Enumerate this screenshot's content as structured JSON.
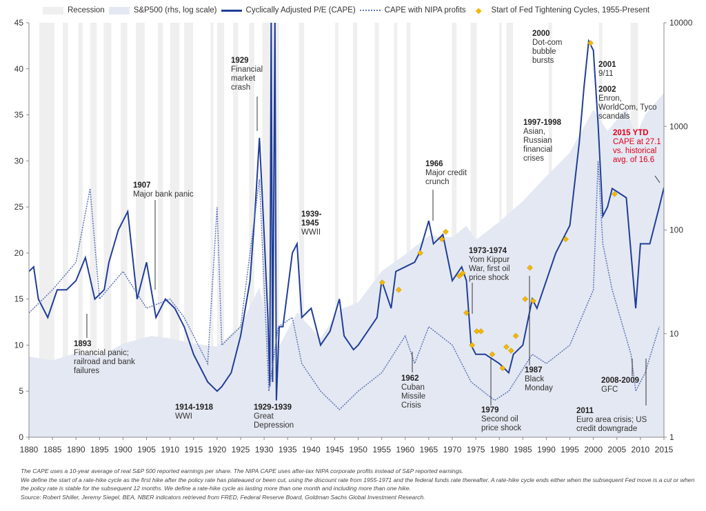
{
  "legend": {
    "recession": "Recession",
    "sp500": "S&P500 (rhs, log scale)",
    "cape": "Cyclically Adjusted P/E (CAPE)",
    "nipa": "CAPE with NIPA profits",
    "fed": "Start of Fed Tightening Cycles, 1955-Present"
  },
  "colors": {
    "cape": "#1f3d99",
    "nipa": "#5b74b8",
    "sp500": "#e4e8f2",
    "recession": "#efefef",
    "fed": "#f5b800",
    "highlight": "#e0001b"
  },
  "chart_data": {
    "type": "line",
    "xlim": [
      1880,
      2015
    ],
    "ylim": [
      0,
      45
    ],
    "y2lim": [
      1,
      10000
    ],
    "y2scale": "log",
    "x_ticks": [
      1880,
      1885,
      1890,
      1895,
      1900,
      1905,
      1910,
      1915,
      1920,
      1925,
      1930,
      1935,
      1940,
      1945,
      1950,
      1955,
      1960,
      1965,
      1970,
      1975,
      1980,
      1985,
      1990,
      1995,
      2000,
      2005,
      2010,
      2015
    ],
    "y_ticks": [
      0,
      5,
      10,
      15,
      20,
      25,
      30,
      35,
      40,
      45
    ],
    "y2_ticks": [
      1,
      10,
      100,
      1000,
      10000
    ],
    "recessions": [
      [
        1882.2,
        1885.4
      ],
      [
        1887.2,
        1888.3
      ],
      [
        1890.5,
        1891.4
      ],
      [
        1893.0,
        1894.4
      ],
      [
        1895.9,
        1897.5
      ],
      [
        1899.5,
        1900.9
      ],
      [
        1902.7,
        1904.6
      ],
      [
        1907.4,
        1908.5
      ],
      [
        1910.0,
        1912.0
      ],
      [
        1913.0,
        1914.9
      ],
      [
        1918.6,
        1919.2
      ],
      [
        1920.0,
        1921.5
      ],
      [
        1923.4,
        1924.5
      ],
      [
        1926.8,
        1927.9
      ],
      [
        1929.6,
        1933.2
      ],
      [
        1937.4,
        1938.5
      ],
      [
        1945.1,
        1945.8
      ],
      [
        1948.9,
        1949.8
      ],
      [
        1953.5,
        1954.4
      ],
      [
        1957.6,
        1958.3
      ],
      [
        1960.3,
        1961.1
      ],
      [
        1969.9,
        1970.9
      ],
      [
        1973.9,
        1975.2
      ],
      [
        1980.0,
        1980.5
      ],
      [
        1981.5,
        1982.9
      ],
      [
        1990.5,
        1991.2
      ],
      [
        2001.2,
        2001.9
      ],
      [
        2007.9,
        2009.5
      ]
    ],
    "sp500": [
      [
        1880,
        6
      ],
      [
        1885,
        5.5
      ],
      [
        1890,
        6.5
      ],
      [
        1895,
        6
      ],
      [
        1900,
        8
      ],
      [
        1906,
        9.5
      ],
      [
        1910,
        9
      ],
      [
        1915,
        8
      ],
      [
        1920,
        7.5
      ],
      [
        1925,
        12
      ],
      [
        1929,
        28
      ],
      [
        1932,
        6
      ],
      [
        1937,
        16
      ],
      [
        1942,
        9
      ],
      [
        1946,
        17
      ],
      [
        1950,
        20
      ],
      [
        1955,
        40
      ],
      [
        1960,
        58
      ],
      [
        1965,
        88
      ],
      [
        1970,
        85
      ],
      [
        1973,
        110
      ],
      [
        1975,
        80
      ],
      [
        1980,
        120
      ],
      [
        1985,
        190
      ],
      [
        1990,
        330
      ],
      [
        1995,
        560
      ],
      [
        2000,
        1450
      ],
      [
        2003,
        900
      ],
      [
        2007,
        1500
      ],
      [
        2009,
        800
      ],
      [
        2011,
        1300
      ],
      [
        2015,
        2100
      ]
    ],
    "series": [
      {
        "name": "Cyclically Adjusted P/E (CAPE)",
        "points": [
          [
            1880,
            18
          ],
          [
            1881,
            18.5
          ],
          [
            1882,
            15
          ],
          [
            1884,
            13
          ],
          [
            1886,
            16
          ],
          [
            1888,
            16
          ],
          [
            1890,
            17
          ],
          [
            1892,
            19.5
          ],
          [
            1894,
            15
          ],
          [
            1896,
            16
          ],
          [
            1897,
            19
          ],
          [
            1899,
            22.5
          ],
          [
            1901,
            24.5
          ],
          [
            1903,
            15
          ],
          [
            1905,
            19
          ],
          [
            1907,
            13
          ],
          [
            1909,
            15
          ],
          [
            1911,
            14
          ],
          [
            1913,
            12
          ],
          [
            1915,
            9
          ],
          [
            1917,
            7
          ],
          [
            1918,
            6
          ],
          [
            1920,
            5
          ],
          [
            1921,
            5.5
          ],
          [
            1923,
            7
          ],
          [
            1925,
            11
          ],
          [
            1927,
            17
          ],
          [
            1928,
            24
          ],
          [
            1929,
            32.5
          ],
          [
            1930,
            22
          ],
          [
            1930.8,
            13
          ],
          [
            1931.2,
            5.5
          ],
          [
            1931.5,
            46
          ],
          [
            1931.8,
            6
          ],
          [
            1932.3,
            46
          ],
          [
            1932.6,
            4
          ],
          [
            1933.2,
            12
          ],
          [
            1934,
            12
          ],
          [
            1936,
            20
          ],
          [
            1937,
            21
          ],
          [
            1938,
            13
          ],
          [
            1940,
            14
          ],
          [
            1942,
            10
          ],
          [
            1944,
            11.5
          ],
          [
            1946,
            15
          ],
          [
            1947,
            11
          ],
          [
            1949,
            9.5
          ],
          [
            1950,
            10
          ],
          [
            1952,
            11.5
          ],
          [
            1954,
            13
          ],
          [
            1955,
            17
          ],
          [
            1957,
            14
          ],
          [
            1958,
            18
          ],
          [
            1960,
            18.5
          ],
          [
            1962,
            19
          ],
          [
            1963,
            20
          ],
          [
            1965,
            23.5
          ],
          [
            1966,
            21
          ],
          [
            1967,
            21.5
          ],
          [
            1968,
            22
          ],
          [
            1970,
            17
          ],
          [
            1972,
            18.5
          ],
          [
            1973,
            17
          ],
          [
            1974,
            10
          ],
          [
            1975,
            9
          ],
          [
            1977,
            9
          ],
          [
            1980,
            8
          ],
          [
            1982,
            7
          ],
          [
            1983,
            9
          ],
          [
            1985,
            10
          ],
          [
            1987,
            15
          ],
          [
            1988,
            14
          ],
          [
            1990,
            17
          ],
          [
            1992,
            20
          ],
          [
            1995,
            23
          ],
          [
            1997,
            32
          ],
          [
            1998,
            38
          ],
          [
            1999,
            43
          ],
          [
            2000,
            42
          ],
          [
            2001,
            34
          ],
          [
            2002,
            24
          ],
          [
            2003,
            25
          ],
          [
            2004,
            27
          ],
          [
            2007,
            26
          ],
          [
            2008,
            20
          ],
          [
            2009,
            14
          ],
          [
            2010,
            21
          ],
          [
            2011,
            21
          ],
          [
            2012,
            21
          ],
          [
            2014,
            25
          ],
          [
            2015,
            27.1
          ]
        ]
      },
      {
        "name": "CAPE with NIPA profits",
        "points": [
          [
            1880,
            13.5
          ],
          [
            1885,
            16
          ],
          [
            1890,
            19
          ],
          [
            1893,
            27
          ],
          [
            1895,
            15
          ],
          [
            1900,
            18
          ],
          [
            1905,
            14
          ],
          [
            1910,
            15
          ],
          [
            1913,
            13
          ],
          [
            1918,
            8
          ],
          [
            1920,
            25
          ],
          [
            1921,
            10
          ],
          [
            1925,
            12
          ],
          [
            1929,
            28
          ],
          [
            1931,
            5
          ],
          [
            1933,
            12
          ],
          [
            1936,
            13
          ],
          [
            1938,
            8
          ],
          [
            1942,
            5
          ],
          [
            1946,
            3
          ],
          [
            1950,
            5
          ],
          [
            1955,
            7
          ],
          [
            1960,
            11
          ],
          [
            1962,
            8
          ],
          [
            1965,
            12
          ],
          [
            1970,
            10
          ],
          [
            1974,
            6
          ],
          [
            1979,
            4
          ],
          [
            1982,
            5
          ],
          [
            1987,
            9
          ],
          [
            1990,
            8
          ],
          [
            1995,
            10
          ],
          [
            2000,
            16
          ],
          [
            2001,
            30
          ],
          [
            2002,
            21
          ],
          [
            2004,
            16
          ],
          [
            2008,
            9
          ],
          [
            2009,
            5
          ],
          [
            2011,
            7
          ],
          [
            2014,
            12
          ]
        ]
      }
    ],
    "fed_tightening": [
      [
        1955.1,
        16.8
      ],
      [
        1958.6,
        16
      ],
      [
        1963.2,
        20
      ],
      [
        1967.8,
        21.5
      ],
      [
        1968.6,
        22.3
      ],
      [
        1971.5,
        17.5
      ],
      [
        1972.2,
        17.8
      ],
      [
        1973.0,
        13.5
      ],
      [
        1974.2,
        10
      ],
      [
        1975.2,
        11.5
      ],
      [
        1976.1,
        11.5
      ],
      [
        1978.5,
        9
      ],
      [
        1980.7,
        7.5
      ],
      [
        1981.5,
        9.8
      ],
      [
        1982.5,
        9.4
      ],
      [
        1983.5,
        11
      ],
      [
        1985.5,
        15
      ],
      [
        1986.5,
        18.4
      ],
      [
        1987.2,
        14.8
      ],
      [
        1994.1,
        21.5
      ],
      [
        1999.4,
        42.8
      ],
      [
        2004.5,
        26.4
      ]
    ]
  },
  "annotations": [
    {
      "year": "1893",
      "text": "Financial panic; railroad and bank failures"
    },
    {
      "year": "1907",
      "text": "Major bank panic"
    },
    {
      "year": "1929",
      "text": "Financial market crash"
    },
    {
      "year": "1914-1918",
      "text": "WWI"
    },
    {
      "year": "1929-1939",
      "text": "Great Depression"
    },
    {
      "year": "1939-1945",
      "text": "WWII"
    },
    {
      "year": "1962",
      "text": "Cuban Missile Crisis"
    },
    {
      "year": "1966",
      "text": "Major credit crunch"
    },
    {
      "year": "1973-1974",
      "text": "Yom Kippur War, first oil price shock"
    },
    {
      "year": "1979",
      "text": "Second oil price shock"
    },
    {
      "year": "1987",
      "text": "Black Monday"
    },
    {
      "year": "1997-1998",
      "text": "Asian, Russian financial crises"
    },
    {
      "year": "2000",
      "text": "Dot-com bubble bursts"
    },
    {
      "year": "2001",
      "text": "9/11"
    },
    {
      "year": "2002",
      "text": "Enron, WorldCom, Tyco scandals"
    },
    {
      "year": "2015 YTD",
      "text": "CAPE at 27.1 vs. historical avg. of 16.6"
    },
    {
      "year": "2008-2009",
      "text": "GFC"
    },
    {
      "year": "2011",
      "text": "Euro area crisis; US credit downgrade"
    }
  ],
  "footnotes": [
    "The CAPE uses a 10-year average of real S&P 500 reported earnings per share. The NIPA CAPE uses after-tax NIPA corporate profits instead of S&P reported earnings.",
    "We define the start of a rate-hike cycle as the first hike after the policy rate has plateaued or been cut, using the discount rate from 1955-1971 and the federal funds rate thereafter. A rate-hike cycle ends either when the subsequent Fed move is a cut or when the policy rate is stable for the subsequent 12 months. We define a rate-hike cycle as lasting more than one month and including more than one hike.",
    "Source: Robert Shiller, Jeremy Siegel, BEA, NBER indicators retrieved from FRED, Federal Reserve Board, Goldman Sachs Global Investment Research."
  ]
}
